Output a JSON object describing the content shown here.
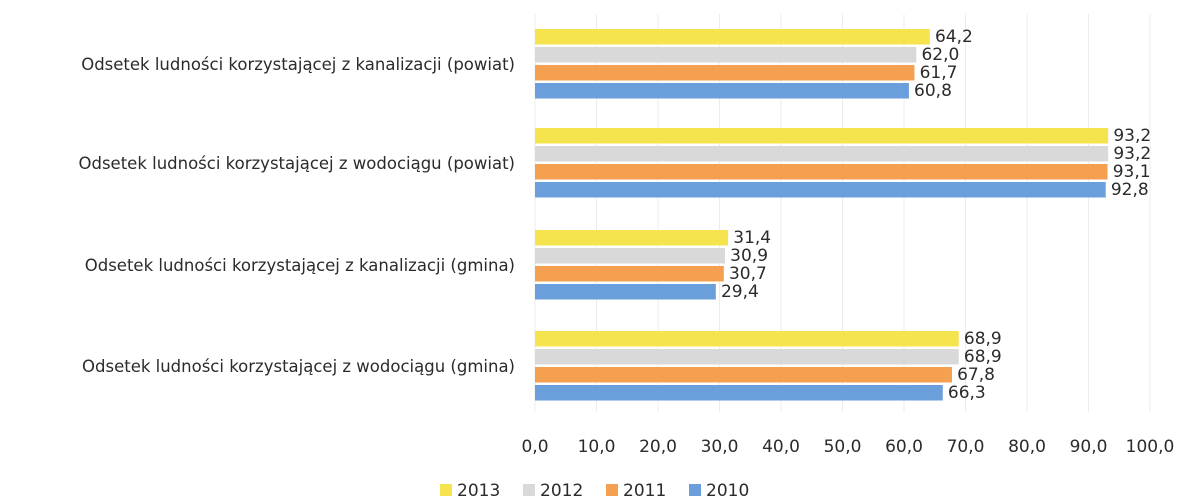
{
  "chart_data": {
    "type": "bar",
    "orientation": "horizontal",
    "categories": [
      "Odsetek ludności korzystającej z kanalizacji (powiat)",
      "Odsetek ludności korzystającej z wodociągu (powiat)",
      "Odsetek ludności korzystającej z kanalizacji (gmina)",
      "Odsetek ludności korzystającej z wodociągu (gmina)"
    ],
    "series": [
      {
        "name": "2013",
        "color": "#f5e44e",
        "values": [
          64.2,
          93.2,
          31.4,
          68.9
        ],
        "labels": [
          "64,2",
          "93,2",
          "31,4",
          "68,9"
        ]
      },
      {
        "name": "2012",
        "color": "#d9d9d9",
        "values": [
          62.0,
          93.2,
          30.9,
          68.9
        ],
        "labels": [
          "62,0",
          "93,2",
          "30,9",
          "68,9"
        ]
      },
      {
        "name": "2011",
        "color": "#f5a050",
        "values": [
          61.7,
          93.1,
          30.7,
          67.8
        ],
        "labels": [
          "61,7",
          "93,1",
          "30,7",
          "67,8"
        ]
      },
      {
        "name": "2010",
        "color": "#6a9fdc",
        "values": [
          60.8,
          92.8,
          29.4,
          66.3
        ],
        "labels": [
          "60,8",
          "92,8",
          "29,4",
          "66,3"
        ]
      }
    ],
    "xlim": [
      0,
      100
    ],
    "ticks": [
      "0,0",
      "10,0",
      "20,0",
      "30,0",
      "40,0",
      "50,0",
      "60,0",
      "70,0",
      "80,0",
      "90,0",
      "100,0"
    ],
    "grid": true,
    "legend": {
      "position": "bottom",
      "items": [
        {
          "label": "2013",
          "color": "#f5e44e"
        },
        {
          "label": "2012",
          "color": "#d9d9d9"
        },
        {
          "label": "2011",
          "color": "#f5a050"
        },
        {
          "label": "2010",
          "color": "#6a9fdc"
        }
      ]
    }
  }
}
